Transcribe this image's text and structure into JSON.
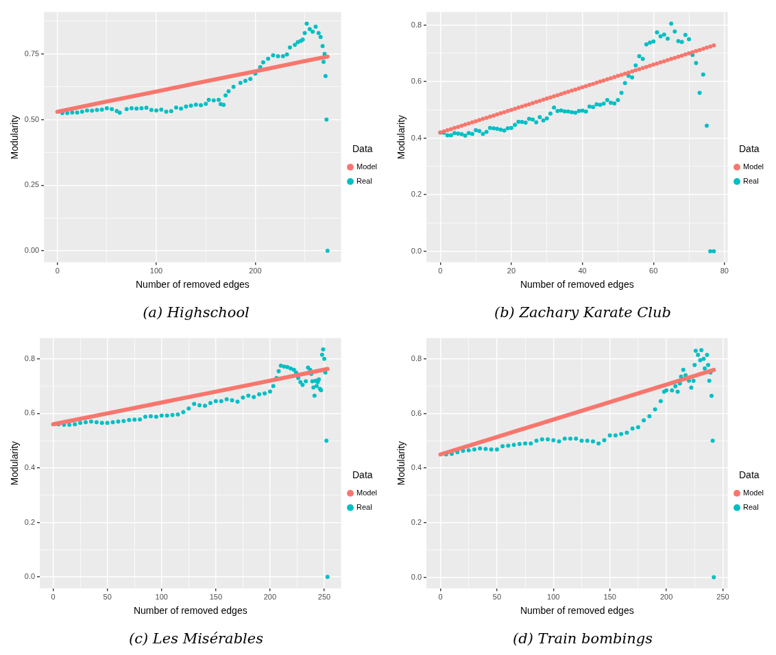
{
  "chart_data": [
    {
      "type": "scatter",
      "title": "(a) Highschool",
      "xlabel": "Number of removed edges",
      "ylabel": "Modularity",
      "legend_title": "Data",
      "legend": "right",
      "grid": true,
      "marker": "circle",
      "xlim": [
        -13.5,
        286.7
      ],
      "ylim": [
        -0.044,
        0.91
      ],
      "xticks": [
        0,
        {
          "value": 50,
          "label": null
        },
        100,
        {
          "value": 150,
          "label": null
        },
        200,
        {
          "value": 250,
          "label": null
        }
      ],
      "yticks": [
        {
          "value": 0,
          "label": "0.00"
        },
        {
          "value": 0.125,
          "label": null
        },
        {
          "value": 0.25,
          "label": "0.25"
        },
        {
          "value": 0.375,
          "label": null
        },
        {
          "value": 0.5,
          "label": "0.50"
        },
        {
          "value": 0.625,
          "label": null
        },
        {
          "value": 0.75,
          "label": "0.75"
        },
        {
          "value": 0.875,
          "label": null
        }
      ],
      "series": [
        {
          "name": "Model",
          "type": "line",
          "marker": "none",
          "color": "#f8766d",
          "x": [
            0,
            50,
            100,
            150,
            200,
            250,
            273
          ],
          "values": [
            0.53,
            0.569,
            0.607,
            0.646,
            0.684,
            0.723,
            0.74
          ]
        },
        {
          "name": "Real",
          "color": "#00bfc4",
          "x": [
            5,
            10,
            15,
            20,
            25,
            30,
            35,
            40,
            45,
            50,
            55,
            60,
            63,
            70,
            75,
            80,
            85,
            90,
            95,
            100,
            105,
            110,
            115,
            120,
            125,
            130,
            135,
            140,
            145,
            150,
            153,
            158,
            163,
            165,
            168,
            170,
            173,
            178,
            185,
            190,
            195,
            200,
            205,
            208,
            213,
            218,
            223,
            228,
            232,
            235,
            240,
            243,
            246,
            248,
            250,
            252,
            255,
            258,
            261,
            264,
            266,
            268,
            269,
            270,
            271,
            272,
            273
          ],
          "values": [
            0.525,
            0.525,
            0.527,
            0.527,
            0.53,
            0.535,
            0.534,
            0.537,
            0.538,
            0.543,
            0.54,
            0.533,
            0.526,
            0.54,
            0.543,
            0.542,
            0.543,
            0.545,
            0.537,
            0.535,
            0.538,
            0.53,
            0.532,
            0.546,
            0.542,
            0.55,
            0.553,
            0.557,
            0.555,
            0.56,
            0.575,
            0.573,
            0.575,
            0.559,
            0.556,
            0.592,
            0.608,
            0.625,
            0.64,
            0.648,
            0.655,
            0.675,
            0.7,
            0.718,
            0.732,
            0.745,
            0.742,
            0.742,
            0.748,
            0.775,
            0.785,
            0.795,
            0.8,
            0.805,
            0.83,
            0.866,
            0.845,
            0.835,
            0.854,
            0.83,
            0.815,
            0.78,
            0.72,
            0.75,
            0.666,
            0.5,
            0
          ]
        }
      ]
    },
    {
      "type": "scatter",
      "title": "(b) Zachary Karate Club",
      "xlabel": "Number of removed edges",
      "ylabel": "Modularity",
      "legend_title": "Data",
      "legend": "right",
      "grid": true,
      "marker": "circle",
      "xlim": [
        -3.9,
        80.9
      ],
      "ylim": [
        -0.039,
        0.846
      ],
      "xticks": [
        0,
        {
          "value": 10,
          "label": null
        },
        20,
        {
          "value": 30,
          "label": null
        },
        40,
        {
          "value": 50,
          "label": null
        },
        60,
        {
          "value": 70,
          "label": null
        },
        80
      ],
      "yticks": [
        {
          "value": 0,
          "label": "0.0"
        },
        {
          "value": 0.1,
          "label": null
        },
        {
          "value": 0.2,
          "label": "0.2"
        },
        {
          "value": 0.3,
          "label": null
        },
        {
          "value": 0.4,
          "label": "0.4"
        },
        {
          "value": 0.5,
          "label": null
        },
        {
          "value": 0.6,
          "label": "0.6"
        },
        {
          "value": 0.7,
          "label": null
        },
        {
          "value": 0.8,
          "label": "0.8"
        }
      ],
      "x": [
        0,
        1,
        2,
        3,
        4,
        5,
        6,
        7,
        8,
        9,
        10,
        11,
        12,
        13,
        14,
        15,
        16,
        17,
        18,
        19,
        20,
        21,
        22,
        23,
        24,
        25,
        26,
        27,
        28,
        29,
        30,
        31,
        32,
        33,
        34,
        35,
        36,
        37,
        38,
        39,
        40,
        41,
        42,
        43,
        44,
        45,
        46,
        47,
        48,
        49,
        50,
        51,
        52,
        53,
        54,
        55,
        56,
        57,
        58,
        59,
        60,
        61,
        62,
        63,
        64,
        65,
        66,
        67,
        68,
        69,
        70,
        71,
        72,
        73,
        74,
        75,
        76,
        77
      ],
      "series": [
        {
          "name": "Model",
          "color": "#f8766d",
          "values": [
            0.42,
            0.424,
            0.428,
            0.432,
            0.436,
            0.44,
            0.444,
            0.448,
            0.452,
            0.456,
            0.46,
            0.464,
            0.468,
            0.472,
            0.476,
            0.48,
            0.484,
            0.488,
            0.492,
            0.496,
            0.5,
            0.504,
            0.508,
            0.512,
            0.516,
            0.52,
            0.524,
            0.528,
            0.532,
            0.536,
            0.54,
            0.544,
            0.548,
            0.552,
            0.556,
            0.56,
            0.564,
            0.568,
            0.572,
            0.576,
            0.58,
            0.584,
            0.588,
            0.592,
            0.596,
            0.6,
            0.604,
            0.608,
            0.612,
            0.616,
            0.62,
            0.624,
            0.628,
            0.632,
            0.636,
            0.64,
            0.644,
            0.648,
            0.652,
            0.656,
            0.66,
            0.664,
            0.668,
            0.672,
            0.676,
            0.68,
            0.684,
            0.688,
            0.692,
            0.696,
            0.7,
            0.704,
            0.708,
            0.712,
            0.716,
            0.72,
            0.724,
            0.728
          ]
        },
        {
          "name": "Real",
          "color": "#00bfc4",
          "values": [
            0.42,
            0.419,
            0.41,
            0.41,
            0.418,
            0.416,
            0.414,
            0.409,
            0.418,
            0.415,
            0.428,
            0.425,
            0.415,
            0.422,
            0.436,
            0.435,
            0.433,
            0.43,
            0.427,
            0.435,
            0.436,
            0.447,
            0.458,
            0.457,
            0.455,
            0.468,
            0.466,
            0.456,
            0.474,
            0.463,
            0.47,
            0.487,
            0.508,
            0.496,
            0.498,
            0.495,
            0.494,
            0.492,
            0.49,
            0.496,
            0.497,
            0.494,
            0.512,
            0.51,
            0.52,
            0.518,
            0.522,
            0.535,
            0.525,
            0.523,
            0.535,
            0.56,
            0.595,
            0.62,
            0.615,
            0.657,
            0.69,
            0.68,
            0.732,
            0.738,
            0.742,
            0.774,
            0.76,
            0.766,
            0.752,
            0.805,
            0.777,
            0.743,
            0.74,
            0.765,
            0.75,
            0.694,
            0.666,
            0.56,
            0.625,
            0.444,
            0,
            0
          ]
        }
      ]
    },
    {
      "type": "scatter",
      "title": "(c) Les Misérables",
      "xlabel": "Number of removed edges",
      "ylabel": "Modularity",
      "legend_title": "Data",
      "legend": "right",
      "grid": true,
      "marker": "circle",
      "xlim": [
        -12.3,
        265.5
      ],
      "ylim": [
        -0.042,
        0.876
      ],
      "xticks": [
        0,
        {
          "value": 25,
          "label": null
        },
        50,
        {
          "value": 75,
          "label": null
        },
        100,
        {
          "value": 125,
          "label": null
        },
        150,
        {
          "value": 175,
          "label": null
        },
        200,
        {
          "value": 225,
          "label": null
        },
        250
      ],
      "yticks": [
        {
          "value": 0,
          "label": "0.0"
        },
        {
          "value": 0.1,
          "label": null
        },
        {
          "value": 0.2,
          "label": "0.2"
        },
        {
          "value": 0.3,
          "label": null
        },
        {
          "value": 0.4,
          "label": "0.4"
        },
        {
          "value": 0.5,
          "label": null
        },
        {
          "value": 0.6,
          "label": "0.6"
        },
        {
          "value": 0.7,
          "label": null
        },
        {
          "value": 0.8,
          "label": "0.8"
        }
      ],
      "series": [
        {
          "name": "Model",
          "type": "line",
          "marker": "none",
          "color": "#f8766d",
          "x": [
            0,
            50,
            100,
            150,
            200,
            253
          ],
          "values": [
            0.56,
            0.6,
            0.64,
            0.68,
            0.72,
            0.763
          ]
        },
        {
          "name": "Real",
          "color": "#00bfc4",
          "x": [
            5,
            10,
            15,
            20,
            25,
            30,
            35,
            40,
            45,
            50,
            55,
            60,
            65,
            70,
            75,
            80,
            85,
            90,
            95,
            100,
            105,
            110,
            115,
            120,
            125,
            130,
            135,
            140,
            145,
            150,
            155,
            160,
            165,
            170,
            175,
            180,
            185,
            190,
            195,
            200,
            203,
            206,
            208,
            210,
            213,
            216,
            219,
            222,
            224,
            226,
            228,
            230,
            233,
            235,
            237,
            238,
            239,
            240,
            241,
            242,
            243,
            244,
            245,
            246,
            247,
            248,
            249,
            250,
            251,
            252,
            253
          ],
          "values": [
            0.56,
            0.558,
            0.558,
            0.56,
            0.565,
            0.568,
            0.57,
            0.568,
            0.565,
            0.565,
            0.568,
            0.57,
            0.572,
            0.576,
            0.577,
            0.578,
            0.588,
            0.59,
            0.588,
            0.592,
            0.592,
            0.594,
            0.596,
            0.605,
            0.618,
            0.635,
            0.63,
            0.628,
            0.638,
            0.645,
            0.645,
            0.652,
            0.648,
            0.643,
            0.658,
            0.665,
            0.66,
            0.67,
            0.673,
            0.68,
            0.7,
            0.73,
            0.755,
            0.775,
            0.772,
            0.77,
            0.765,
            0.76,
            0.75,
            0.73,
            0.715,
            0.705,
            0.718,
            0.768,
            0.76,
            0.745,
            0.718,
            0.695,
            0.665,
            0.72,
            0.7,
            0.715,
            0.725,
            0.69,
            0.685,
            0.815,
            0.835,
            0.8,
            0.75,
            0.5,
            0
          ]
        }
      ]
    },
    {
      "type": "scatter",
      "title": "(d) Train bombings",
      "xlabel": "Number of removed edges",
      "ylabel": "Modularity",
      "legend_title": "Data",
      "legend": "right",
      "grid": true,
      "marker": "circle",
      "xlim": [
        -12.4,
        254.3
      ],
      "ylim": [
        -0.041,
        0.876
      ],
      "xticks": [
        0,
        {
          "value": 25,
          "label": null
        },
        50,
        {
          "value": 75,
          "label": null
        },
        100,
        {
          "value": 125,
          "label": null
        },
        150,
        {
          "value": 175,
          "label": null
        },
        200,
        {
          "value": 225,
          "label": null
        },
        250
      ],
      "yticks": [
        {
          "value": 0,
          "label": "0.0"
        },
        {
          "value": 0.1,
          "label": null
        },
        {
          "value": 0.2,
          "label": "0.2"
        },
        {
          "value": 0.3,
          "label": null
        },
        {
          "value": 0.4,
          "label": "0.4"
        },
        {
          "value": 0.5,
          "label": null
        },
        {
          "value": 0.6,
          "label": "0.6"
        },
        {
          "value": 0.7,
          "label": null
        },
        {
          "value": 0.8,
          "label": "0.8"
        }
      ],
      "series": [
        {
          "name": "Model",
          "type": "line",
          "marker": "none",
          "color": "#f8766d",
          "x": [
            0,
            50,
            100,
            150,
            200,
            242
          ],
          "values": [
            0.45,
            0.514,
            0.578,
            0.642,
            0.706,
            0.76
          ]
        },
        {
          "name": "Real",
          "color": "#00bfc4",
          "x": [
            5,
            10,
            15,
            20,
            25,
            30,
            35,
            40,
            45,
            50,
            55,
            60,
            65,
            70,
            75,
            80,
            85,
            90,
            95,
            100,
            105,
            110,
            115,
            120,
            125,
            130,
            135,
            140,
            145,
            150,
            155,
            160,
            165,
            170,
            175,
            180,
            185,
            190,
            195,
            198,
            200,
            205,
            208,
            210,
            212,
            213,
            215,
            217,
            220,
            222,
            224,
            225,
            226,
            228,
            230,
            231,
            233,
            234,
            236,
            237,
            238,
            239,
            240,
            241,
            242
          ],
          "values": [
            0.45,
            0.452,
            0.458,
            0.463,
            0.465,
            0.468,
            0.472,
            0.47,
            0.468,
            0.468,
            0.48,
            0.482,
            0.485,
            0.488,
            0.49,
            0.49,
            0.5,
            0.505,
            0.505,
            0.502,
            0.498,
            0.508,
            0.508,
            0.508,
            0.5,
            0.5,
            0.498,
            0.49,
            0.502,
            0.52,
            0.52,
            0.525,
            0.53,
            0.545,
            0.55,
            0.575,
            0.59,
            0.615,
            0.645,
            0.68,
            0.685,
            0.685,
            0.7,
            0.68,
            0.71,
            0.735,
            0.76,
            0.74,
            0.72,
            0.695,
            0.72,
            0.778,
            0.83,
            0.815,
            0.795,
            0.832,
            0.8,
            0.765,
            0.815,
            0.778,
            0.72,
            0.75,
            0.665,
            0.5,
            0
          ]
        }
      ]
    }
  ]
}
